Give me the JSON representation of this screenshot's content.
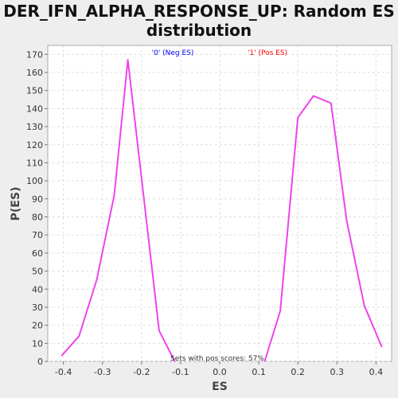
{
  "chart_data": {
    "type": "line",
    "title_lines": [
      "DER_IFN_ALPHA_RESPONSE_UP: Random ES",
      "distribution"
    ],
    "xlabel": "ES",
    "ylabel": "P(ES)",
    "xlim": [
      -0.44,
      0.44
    ],
    "ylim": [
      0,
      175
    ],
    "xticks": [
      -0.4,
      -0.3,
      -0.2,
      -0.1,
      0.0,
      0.1,
      0.2,
      0.3,
      0.4
    ],
    "xtick_labels": [
      "-0.4",
      "-0.3",
      "-0.2",
      "-0.1",
      "0.0",
      "0.1",
      "0.2",
      "0.3",
      "0.4"
    ],
    "yticks": [
      0,
      10,
      20,
      30,
      40,
      50,
      60,
      70,
      80,
      90,
      100,
      110,
      120,
      130,
      140,
      150,
      160,
      170
    ],
    "ytick_labels": [
      "0",
      "10",
      "20",
      "30",
      "40",
      "50",
      "60",
      "70",
      "80",
      "90",
      "100",
      "110",
      "120",
      "130",
      "140",
      "150",
      "160",
      "170"
    ],
    "grid": true,
    "legend": [
      {
        "label": "'0' (Neg ES)",
        "color": "#0000ff"
      },
      {
        "label": "'1' (Pos ES)",
        "color": "#ff0000"
      }
    ],
    "legend_placement": "top",
    "annotation": "Sets with pos scores: 57%",
    "line_color": "#ee44ee",
    "series": [
      {
        "x": [
          -0.405,
          -0.36,
          -0.315,
          -0.27,
          -0.235,
          -0.195,
          -0.155,
          -0.115
        ],
        "y": [
          3,
          14,
          45,
          92,
          167,
          92,
          17,
          0
        ]
      },
      {
        "x": [
          0.115,
          0.155,
          0.2,
          0.24,
          0.285,
          0.325,
          0.37,
          0.415
        ],
        "y": [
          0,
          28,
          135,
          147,
          143,
          78,
          31,
          8
        ]
      }
    ]
  }
}
